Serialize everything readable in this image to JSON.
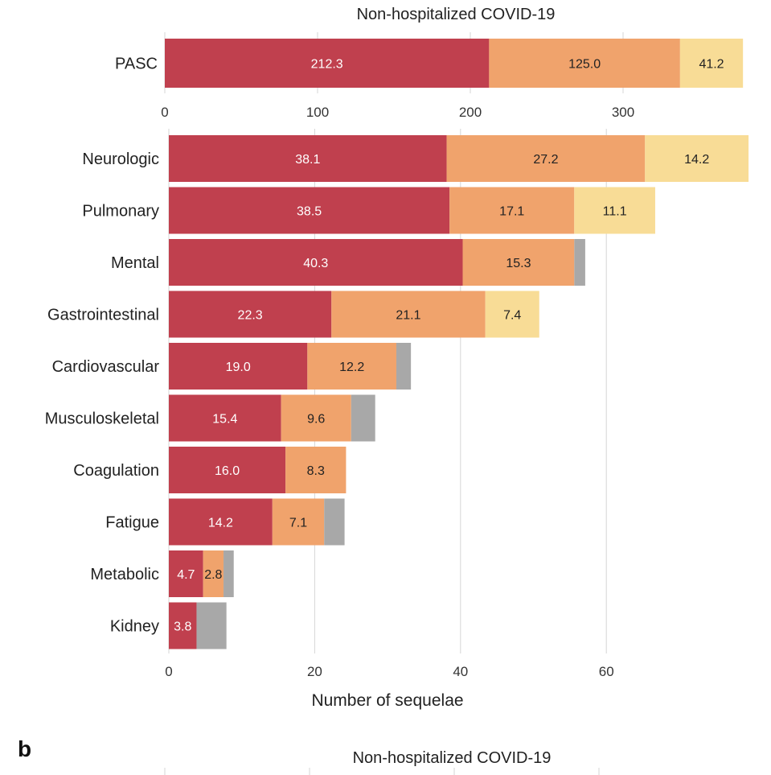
{
  "chart_data": [
    {
      "type": "bar",
      "orientation": "horizontal",
      "stacked": true,
      "title": "Non-hospitalized COVID-19",
      "xlabel": "",
      "ylabel": "",
      "xlim": [
        0,
        380
      ],
      "xticks": [
        "0",
        "100",
        "200",
        "300"
      ],
      "tick_values": [
        0,
        100,
        200,
        300
      ],
      "grid": true,
      "categories": [
        "PASC"
      ],
      "series": [
        {
          "name": "segment-1",
          "color": "#c0404e",
          "values": [
            212.3
          ],
          "labels": [
            "212.3"
          ]
        },
        {
          "name": "segment-2",
          "color": "#f0a36c",
          "values": [
            125.0
          ],
          "labels": [
            "125.0"
          ]
        },
        {
          "name": "segment-3",
          "color": "#f8dc96",
          "values": [
            41.2
          ],
          "labels": [
            "41.2"
          ]
        }
      ]
    },
    {
      "type": "bar",
      "orientation": "horizontal",
      "stacked": true,
      "title": "",
      "xlabel": "Number of sequelae",
      "ylabel": "",
      "xlim": [
        0,
        80
      ],
      "xticks": [
        "0",
        "20",
        "40",
        "60"
      ],
      "tick_values": [
        0,
        20,
        40,
        60
      ],
      "grid": true,
      "categories": [
        "Neurologic",
        "Pulmonary",
        "Mental",
        "Gastrointestinal",
        "Cardiovascular",
        "Musculoskeletal",
        "Coagulation",
        "Fatigue",
        "Metabolic",
        "Kidney"
      ],
      "series": [
        {
          "name": "segment-1",
          "color": "#c0404e",
          "values": [
            38.1,
            38.5,
            40.3,
            22.3,
            19.0,
            15.4,
            16.0,
            14.2,
            4.7,
            3.8
          ],
          "labels": [
            "38.1",
            "38.5",
            "40.3",
            "22.3",
            "19.0",
            "15.4",
            "16.0",
            "14.2",
            "4.7",
            "3.8"
          ]
        },
        {
          "name": "segment-2",
          "color": "#f0a36c",
          "values": [
            27.2,
            17.1,
            15.3,
            21.1,
            12.2,
            9.6,
            8.3,
            7.1,
            2.8,
            0
          ],
          "labels": [
            "27.2",
            "17.1",
            "15.3",
            "21.1",
            "12.2",
            "9.6",
            "8.3",
            "7.1",
            "2.8",
            ""
          ]
        },
        {
          "name": "segment-3",
          "color": "#f8dc96",
          "values": [
            14.2,
            11.1,
            0,
            7.4,
            0,
            0,
            0,
            0,
            0,
            0
          ],
          "labels": [
            "14.2",
            "11.1",
            "",
            "7.4",
            "",
            "",
            "",
            "",
            "",
            ""
          ]
        },
        {
          "name": "other",
          "color": "#a8a8a8",
          "values": [
            0,
            0,
            1.5,
            0,
            2.0,
            3.3,
            0,
            2.8,
            1.4,
            4.1
          ],
          "labels": [
            "",
            "",
            "",
            "",
            "",
            "",
            "",
            "",
            "",
            ""
          ]
        }
      ]
    },
    {
      "type": "bar",
      "orientation": "horizontal",
      "stacked": true,
      "panel_label": "b",
      "title": "Non-hospitalized COVID-19",
      "categories": [],
      "series": []
    }
  ]
}
